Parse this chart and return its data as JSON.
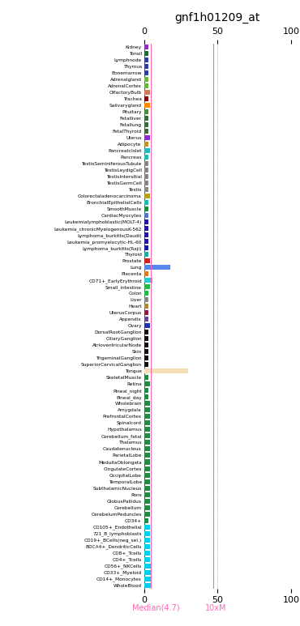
{
  "title": "gnf1h01209_at",
  "xlim": [
    0,
    100
  ],
  "xticks": [
    0,
    50,
    100
  ],
  "median_line": 4.7,
  "tenxm_line": 47,
  "median_label": "Median(4.7)",
  "tenxm_label": "10xM",
  "tissues": [
    "Kidney",
    "Tonsil",
    "Lymphnode",
    "Thymus",
    "Bonemarrow",
    "Adrenalgland",
    "AdrenalCortex",
    "OlfactoryBulb",
    "Trachea",
    "Salivarygland",
    "Pituitary",
    "Fetalliver",
    "Fetallung",
    "FetalThyroid",
    "Uterus",
    "Adipocyte",
    "PancreatcIslet",
    "Pancreas",
    "TestisSeminiferousTubule",
    "TestisLeydigCell",
    "TestisIntersitial",
    "TestisGermCell",
    "Testis",
    "Colorectaladenocarcinoma",
    "BronchialEpithelialCells",
    "SmoothMuscle",
    "CardiacMyocytes",
    "Leukemialymphoblastic(MOLT-4)",
    "Leukemia_chronicMyelogenousK-562",
    "Lymphoma_burkitts(Daudi)",
    "Leukemia_promyelocytic-HL-60",
    "Lymphoma_burkitts(Raji)",
    "Thyroid",
    "Prostate",
    "Lung",
    "Placenta",
    "CD71+_EarlyErythroid",
    "Small_intestine",
    "Colon",
    "Liver",
    "Heart",
    "UterusCorpus",
    "Appendix",
    "Ovary",
    "DorsalRootGanglion",
    "CiliaryGanglion",
    "AtrioventricularNode",
    "Skin",
    "TrigeminalGanglion",
    "SuperiorCervicalGanglion",
    "Tongue",
    "SkeletalMuscle",
    "Retina",
    "Pineal_night",
    "Pineal_day",
    "Wholebrain",
    "Amygdala",
    "PrefrontalCortex",
    "Spinalcord",
    "Hypothalamus",
    "Cerebellum_fetal",
    "Thalamus",
    "Caudatenucleus",
    "ParietalLobe",
    "MedullaOblongata",
    "CingulateCortex",
    "OccipitalLobe",
    "TemporalLobe",
    "SubthalamicNucleus",
    "Pons",
    "GlobusPallidus",
    "Cerebellum",
    "CerebelumPeduncles",
    "CD34+",
    "CD105+_Endothelial",
    "721_B_lymphoblasts",
    "CD19+_BCells(neg_sel.)",
    "BDCA4+_DendriticCells",
    "CD8+_Tcells",
    "CD4+_Tcells",
    "CD56+_NKCells",
    "CD33+_Myeloid",
    "CD14+_Monocytes",
    "WholeBlood"
  ],
  "values": [
    3,
    3,
    3,
    3,
    3,
    3,
    3,
    4,
    3,
    4,
    3,
    3,
    3,
    3,
    4,
    3,
    4,
    3,
    3,
    3,
    3,
    3,
    3,
    4,
    3,
    3,
    3,
    3,
    3,
    3,
    3,
    3,
    3,
    4,
    18,
    3,
    6,
    4,
    3,
    3,
    3,
    3,
    3,
    4,
    3,
    3,
    3,
    3,
    3,
    3,
    30,
    3,
    4,
    3,
    3,
    4,
    4,
    4,
    4,
    4,
    4,
    4,
    4,
    4,
    4,
    4,
    4,
    4,
    4,
    4,
    4,
    4,
    4,
    3,
    4,
    4,
    4,
    4,
    4,
    4,
    5,
    5,
    5,
    5
  ],
  "colors": [
    "#8B2FC9",
    "#1A6B35",
    "#2B3F9E",
    "#2B3F9E",
    "#2B3F9E",
    "#6DB33F",
    "#6DB33F",
    "#D4795A",
    "#8B0000",
    "#FF8C00",
    "#4B8B3B",
    "#3A6B3A",
    "#3A6B3A",
    "#3A6B3A",
    "#8B2FC9",
    "#B8962A",
    "#22BBBB",
    "#22BBBB",
    "#888888",
    "#888888",
    "#888888",
    "#888888",
    "#888888",
    "#B8A020",
    "#22BBBB",
    "#228844",
    "#5577CC",
    "#1A1A9A",
    "#1A1A9A",
    "#1A1A9A",
    "#1A1A9A",
    "#1A1A9A",
    "#22AAAA",
    "#CC2222",
    "#5588EE",
    "#DD7722",
    "#22CCCC",
    "#22BB44",
    "#22BB44",
    "#888888",
    "#AA8844",
    "#882244",
    "#664499",
    "#2233AA",
    "#111111",
    "#111111",
    "#111111",
    "#111111",
    "#111111",
    "#111111",
    "#F5DEB3",
    "#228844",
    "#228844",
    "#228844",
    "#228844",
    "#228844",
    "#228844",
    "#228844",
    "#228844",
    "#228844",
    "#228844",
    "#228844",
    "#228844",
    "#228844",
    "#228844",
    "#228844",
    "#228844",
    "#228844",
    "#228844",
    "#228844",
    "#228844",
    "#228844",
    "#228844",
    "#228844",
    "#00CCEE",
    "#00CCEE",
    "#00CCEE",
    "#00CCEE",
    "#00CCEE",
    "#00CCEE",
    "#00CCEE",
    "#00CCEE",
    "#00CCEE",
    "#00CCEE"
  ]
}
